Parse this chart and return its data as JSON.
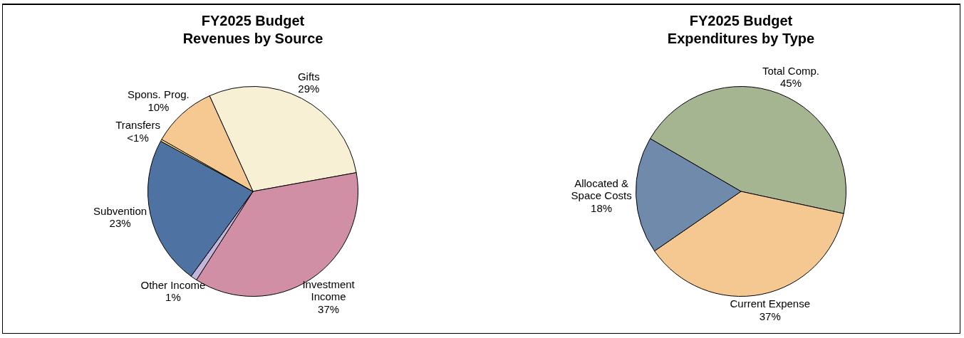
{
  "chart_data": [
    {
      "type": "pie",
      "title": "FY2025 Budget",
      "subtitle": "Revenues by Source",
      "categories": [
        "Gifts",
        "Investment Income",
        "Other Income",
        "Subvention",
        "Transfers",
        "Spons. Prog."
      ],
      "values": [
        29,
        37,
        1,
        23,
        0.3,
        10
      ],
      "value_labels": [
        "29%",
        "37%",
        "1%",
        "23%",
        "<1%",
        "10%"
      ],
      "colors": [
        "#f8f0d5",
        "#d08fa5",
        "#c3b5d9",
        "#4e73a2",
        "#f4e27a",
        "#f6c892"
      ]
    },
    {
      "type": "pie",
      "title": "FY2025 Budget",
      "subtitle": "Expenditures by Type",
      "categories": [
        "Total Comp.",
        "Current Expense",
        "Allocated & Space Costs"
      ],
      "values": [
        45,
        37,
        18
      ],
      "value_labels": [
        "45%",
        "37%",
        "18%"
      ],
      "colors": [
        "#a5b592",
        "#f6c891",
        "#6f8aab"
      ]
    }
  ]
}
